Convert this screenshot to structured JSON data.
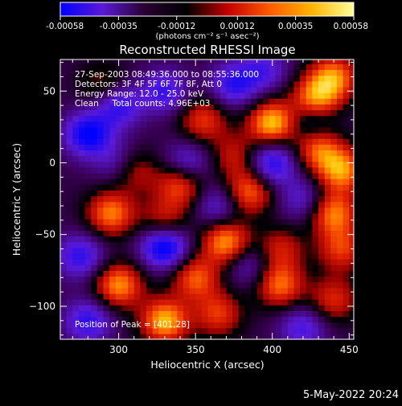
{
  "chart_data": {
    "type": "heatmap",
    "title": "Reconstructed RHESSI Image",
    "xlabel": "Heliocentric X (arcsec)",
    "ylabel": "Heliocentric Y (arcsec)",
    "xlim": [
      262,
      453
    ],
    "ylim": [
      -123,
      72
    ],
    "xticks": [
      300,
      350,
      400,
      450
    ],
    "yticks": [
      50,
      0,
      -50,
      -100
    ],
    "colorbar": {
      "range": [
        -0.00058,
        0.00058
      ],
      "tick_values": [
        -0.00058,
        -0.00035,
        -0.00012,
        0.00012,
        0.00035,
        0.00058
      ],
      "tick_labels": [
        "-0.00058",
        "-0.00035",
        "-0.00012",
        "0.00012",
        "0.00035",
        "0.00058"
      ],
      "unit": "(photons cm⁻² s⁻¹ asec⁻²)",
      "colors": [
        "#0000ff",
        "#5a1ad8",
        "#2b0033",
        "#000000",
        "#c40000",
        "#ff5a00",
        "#ffb400",
        "#ffff9a"
      ]
    },
    "annotations": [
      "27-Sep-2003 08:49:36.000 to 08:55:36.000",
      "Detectors: 3F 4F 5F 6F 7F 8F, Att 0",
      "Energy Range: 12.0 - 25.0 keV",
      "Clean     Total counts: 4.96E+03"
    ],
    "peak_label": "Position of Peak = [401,28]",
    "peak": [
      401,
      28
    ],
    "blobs": [
      {
        "x": 440,
        "y": 60,
        "v": 0.8
      },
      {
        "x": 400,
        "y": 28,
        "v": 1.0
      },
      {
        "x": 428,
        "y": 45,
        "v": 0.85
      },
      {
        "x": 355,
        "y": 30,
        "v": 0.6
      },
      {
        "x": 290,
        "y": 55,
        "v": 0.35
      },
      {
        "x": 375,
        "y": 5,
        "v": 0.45
      },
      {
        "x": 445,
        "y": -5,
        "v": 0.85
      },
      {
        "x": 430,
        "y": 10,
        "v": 0.7
      },
      {
        "x": 340,
        "y": -15,
        "v": 0.7
      },
      {
        "x": 310,
        "y": -5,
        "v": 0.5
      },
      {
        "x": 385,
        "y": -20,
        "v": 0.75
      },
      {
        "x": 295,
        "y": -35,
        "v": 0.8
      },
      {
        "x": 330,
        "y": -40,
        "v": 0.5
      },
      {
        "x": 370,
        "y": -55,
        "v": 0.9
      },
      {
        "x": 405,
        "y": -60,
        "v": 0.5
      },
      {
        "x": 440,
        "y": -35,
        "v": 0.8
      },
      {
        "x": 445,
        "y": -60,
        "v": 0.6
      },
      {
        "x": 300,
        "y": -85,
        "v": 0.85
      },
      {
        "x": 350,
        "y": -80,
        "v": 0.7
      },
      {
        "x": 405,
        "y": -85,
        "v": 0.75
      },
      {
        "x": 440,
        "y": -95,
        "v": 0.55
      },
      {
        "x": 330,
        "y": -110,
        "v": 0.95
      },
      {
        "x": 365,
        "y": -105,
        "v": 0.6
      },
      {
        "x": 280,
        "y": 20,
        "v": -0.8
      },
      {
        "x": 300,
        "y": 40,
        "v": -0.6
      },
      {
        "x": 330,
        "y": 50,
        "v": -0.55
      },
      {
        "x": 375,
        "y": 55,
        "v": -0.6
      },
      {
        "x": 395,
        "y": 65,
        "v": -0.45
      },
      {
        "x": 345,
        "y": 0,
        "v": -0.5
      },
      {
        "x": 400,
        "y": 0,
        "v": -0.7
      },
      {
        "x": 420,
        "y": -25,
        "v": -0.4
      },
      {
        "x": 330,
        "y": -58,
        "v": -0.9
      },
      {
        "x": 275,
        "y": -65,
        "v": -0.6
      },
      {
        "x": 280,
        "y": -110,
        "v": -0.6
      },
      {
        "x": 365,
        "y": -30,
        "v": -0.45
      },
      {
        "x": 420,
        "y": -115,
        "v": -0.5
      },
      {
        "x": 300,
        "y": 0,
        "v": -0.4
      },
      {
        "x": 385,
        "y": -70,
        "v": -0.4
      },
      {
        "x": 425,
        "y": 30,
        "v": -0.35
      }
    ]
  },
  "footer": {
    "date_stamp": "5-May-2022 20:24"
  }
}
